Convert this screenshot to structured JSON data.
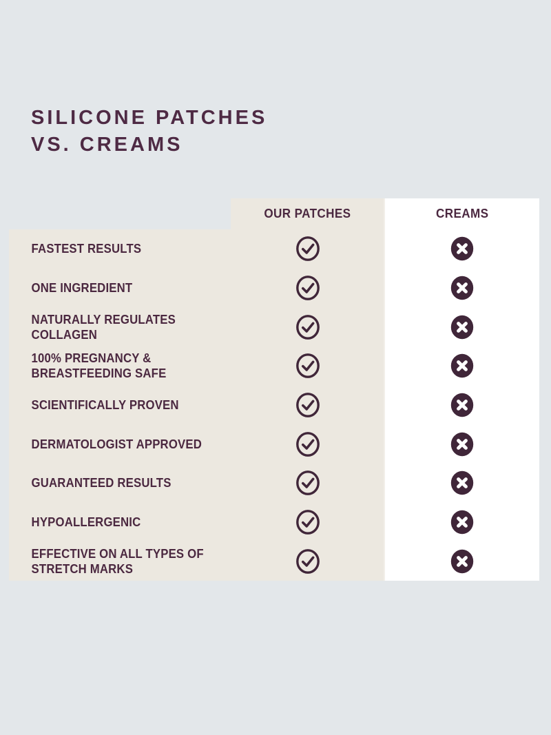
{
  "title": {
    "text": "SILICONE PATCHES\nVS. CREAMS"
  },
  "table": {
    "columns": [
      {
        "key": "patches",
        "label": "OUR PATCHES"
      },
      {
        "key": "creams",
        "label": "CREAMS"
      }
    ],
    "rows": [
      {
        "label": "FASTEST RESULTS",
        "patches": true,
        "creams": false
      },
      {
        "label": "ONE INGREDIENT",
        "patches": true,
        "creams": false
      },
      {
        "label": "NATURALLY REGULATES\nCOLLAGEN",
        "patches": true,
        "creams": false
      },
      {
        "label": "100% PREGNANCY &\nBREASTFEEDING SAFE",
        "patches": true,
        "creams": false
      },
      {
        "label": "SCIENTIFICALLY PROVEN",
        "patches": true,
        "creams": false
      },
      {
        "label": "DERMATOLOGIST APPROVED",
        "patches": true,
        "creams": false
      },
      {
        "label": "GUARANTEED RESULTS",
        "patches": true,
        "creams": false
      },
      {
        "label": "HYPOALLERGENIC",
        "patches": true,
        "creams": false
      },
      {
        "label": "EFFECTIVE ON ALL TYPES OF\nSTRETCH MARKS",
        "patches": true,
        "creams": false
      }
    ]
  },
  "icons": {
    "yes": "check-circle-icon",
    "no": "x-circle-icon"
  },
  "colors": {
    "page_bg": "#e3e7ea",
    "panel_bg": "#ece8e0",
    "creams_bg": "#ffffff",
    "divider": "#f2efe9",
    "title": "#4e2a44",
    "text": "#4b2840",
    "icon": "#402639",
    "cross_glyph": "#ffffff"
  },
  "chart_data": {
    "type": "table",
    "title": "SILICONE PATCHES VS. CREAMS",
    "columns": [
      "",
      "OUR PATCHES",
      "CREAMS"
    ],
    "rows": [
      [
        "FASTEST RESULTS",
        "yes",
        "no"
      ],
      [
        "ONE INGREDIENT",
        "yes",
        "no"
      ],
      [
        "NATURALLY REGULATES COLLAGEN",
        "yes",
        "no"
      ],
      [
        "100% PREGNANCY & BREASTFEEDING SAFE",
        "yes",
        "no"
      ],
      [
        "SCIENTIFICALLY PROVEN",
        "yes",
        "no"
      ],
      [
        "DERMATOLOGIST APPROVED",
        "yes",
        "no"
      ],
      [
        "GUARANTEED RESULTS",
        "yes",
        "no"
      ],
      [
        "HYPOALLERGENIC",
        "yes",
        "no"
      ],
      [
        "EFFECTIVE ON ALL TYPES OF STRETCH MARKS",
        "yes",
        "no"
      ]
    ],
    "legend_position": "none",
    "grid": false
  }
}
